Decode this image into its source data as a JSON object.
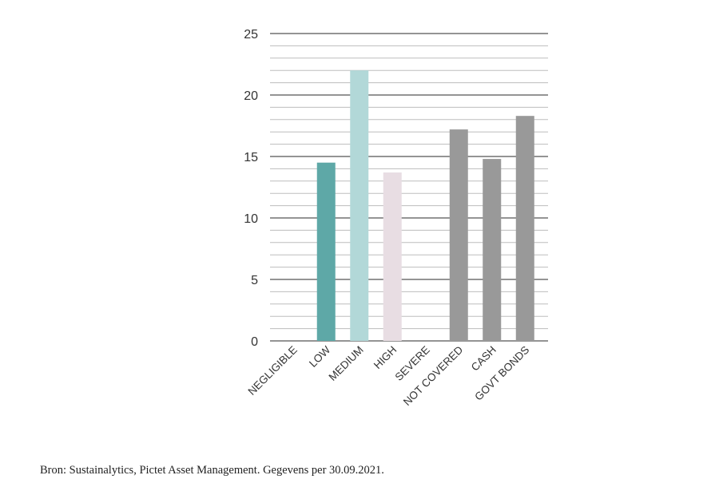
{
  "chart_data": {
    "type": "bar",
    "categories": [
      "NEGLIGIBLE",
      "LOW",
      "MEDIUM",
      "HIGH",
      "SEVERE",
      "NOT COVERED",
      "CASH",
      "GOVT BONDS"
    ],
    "values": [
      0,
      14.5,
      22,
      13.7,
      0,
      17.2,
      14.8,
      18.3
    ],
    "colors": [
      "#5ea8a7",
      "#5ea8a7",
      "#b2d8d8",
      "#e8dde3",
      "#999999",
      "#999999",
      "#999999",
      "#999999"
    ],
    "ylim": [
      0,
      25
    ],
    "yticks": [
      "0",
      "5",
      "10",
      "15",
      "20",
      "25"
    ],
    "minor_step": 1,
    "grid": true,
    "title": "",
    "xlabel": "",
    "ylabel": ""
  },
  "source": "Bron: Sustainalytics, Pictet Asset Management. Gegevens per 30.09.2021."
}
